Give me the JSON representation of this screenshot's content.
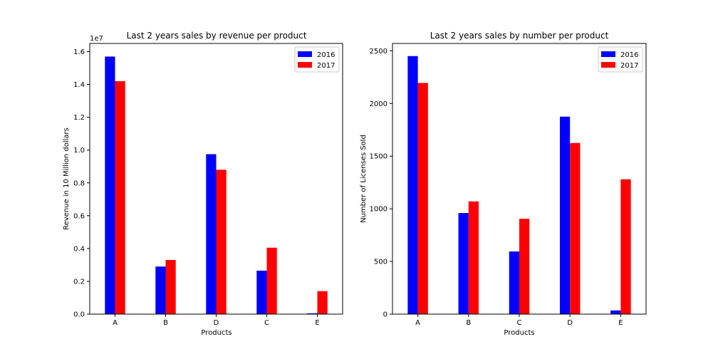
{
  "chart_data": [
    {
      "type": "bar",
      "title": "Last 2 years sales by revenue per product",
      "xlabel": "Products",
      "ylabel": "Revenue in 10 Million dollars",
      "y_offset_text": "1e7",
      "categories": [
        "A",
        "B",
        "D",
        "C",
        "E"
      ],
      "ylim": [
        0,
        1.65
      ],
      "yticks": [
        0.0,
        0.2,
        0.4,
        0.6,
        0.8,
        1.0,
        1.2,
        1.4,
        1.6
      ],
      "ytick_labels": [
        "0.0",
        "0.2",
        "0.4",
        "0.6",
        "0.8",
        "1.0",
        "1.2",
        "1.4",
        "1.6"
      ],
      "series": [
        {
          "name": "2016",
          "color": "#0000ff",
          "values": [
            1.57,
            0.29,
            0.975,
            0.265,
            0.005
          ]
        },
        {
          "name": "2017",
          "color": "#ff0000",
          "values": [
            1.42,
            0.33,
            0.88,
            0.405,
            0.14
          ]
        }
      ],
      "legend": "top-right",
      "grid": false
    },
    {
      "type": "bar",
      "title": "Last 2 years sales by number per product",
      "xlabel": "Products",
      "ylabel": "Number of Licenses Sold",
      "categories": [
        "A",
        "B",
        "C",
        "D",
        "E"
      ],
      "ylim": [
        0,
        2570
      ],
      "yticks": [
        0,
        500,
        1000,
        1500,
        2000,
        2500
      ],
      "ytick_labels": [
        "0",
        "500",
        "1000",
        "1500",
        "2000",
        "2500"
      ],
      "series": [
        {
          "name": "2016",
          "color": "#0000ff",
          "values": [
            2450,
            960,
            595,
            1875,
            35
          ]
        },
        {
          "name": "2017",
          "color": "#ff0000",
          "values": [
            2195,
            1070,
            905,
            1625,
            1280
          ]
        }
      ],
      "legend": "top-right",
      "grid": false
    }
  ]
}
